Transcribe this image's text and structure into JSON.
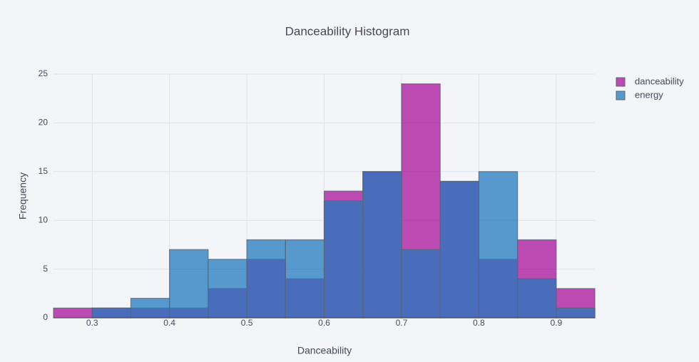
{
  "chart_data": {
    "type": "histogram",
    "title": "Danceability Histogram",
    "x_label": "Danceability",
    "y_label": "Frequency",
    "bins": [
      0.25,
      0.3,
      0.35,
      0.4,
      0.45,
      0.5,
      0.55,
      0.6,
      0.65,
      0.7,
      0.75,
      0.8,
      0.85,
      0.9,
      0.95
    ],
    "series": [
      {
        "name": "danceability",
        "color": "#a8109a",
        "values": [
          1,
          1,
          1,
          1,
          3,
          6,
          4,
          13,
          15,
          24,
          14,
          6,
          8,
          3
        ]
      },
      {
        "name": "energy",
        "color": "#2378be",
        "values": [
          0,
          1,
          2,
          7,
          6,
          8,
          8,
          12,
          15,
          7,
          14,
          15,
          4,
          1
        ]
      }
    ],
    "barmode": "overlay",
    "xlim": [
      0.25,
      0.95
    ],
    "xticks": [
      0.3,
      0.4,
      0.5,
      0.6,
      0.7,
      0.8,
      0.9
    ],
    "ylim": [
      0,
      25
    ],
    "yticks": [
      0,
      5,
      10,
      15,
      20,
      25
    ],
    "grid": true,
    "legend": "top-right"
  }
}
